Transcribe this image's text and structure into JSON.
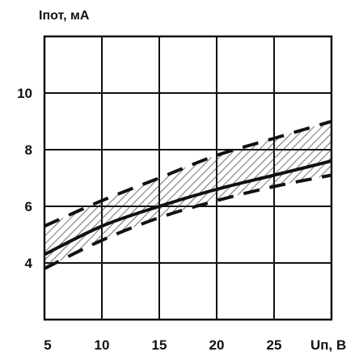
{
  "chart_data": {
    "type": "line",
    "ylabel": "Iпот, мА",
    "xlabel": "Uп, В",
    "x_ticks": [
      "5",
      "10",
      "15",
      "20",
      "25"
    ],
    "y_ticks": [
      "4",
      "6",
      "8",
      "10"
    ],
    "xlim": [
      5,
      30
    ],
    "ylim": [
      2,
      12
    ],
    "grid": true,
    "series": [
      {
        "style": "solid",
        "x": [
          5,
          10,
          15,
          20,
          25,
          30
        ],
        "y": [
          4.3,
          5.3,
          6.0,
          6.6,
          7.1,
          7.6
        ]
      },
      {
        "style": "dashed",
        "x": [
          5,
          10,
          15,
          20,
          25,
          30
        ],
        "y": [
          5.3,
          6.2,
          7.0,
          7.8,
          8.4,
          9.0
        ]
      },
      {
        "style": "dashed",
        "x": [
          5,
          10,
          15,
          20,
          25,
          30
        ],
        "y": [
          3.8,
          4.8,
          5.6,
          6.2,
          6.7,
          7.1
        ]
      }
    ],
    "band": {
      "style": "hatched",
      "between": [
        1,
        2
      ]
    }
  },
  "colors": {
    "ink": "#111111",
    "hatch": "#333333",
    "background": "#ffffff"
  }
}
